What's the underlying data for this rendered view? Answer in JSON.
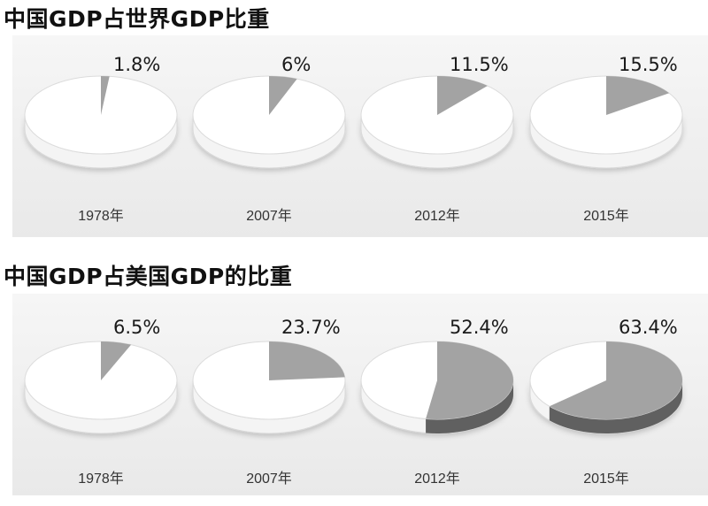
{
  "chart_data": [
    {
      "type": "pie",
      "title": "中国GDP占世界GDP比重",
      "categories": [
        "1978年",
        "2007年",
        "2012年",
        "2015年"
      ],
      "values": [
        1.8,
        6,
        11.5,
        15.5
      ],
      "value_labels": [
        "1.8%",
        "6%",
        "11.5%",
        "15.5%"
      ],
      "colors": {
        "share": "#a3a3a3",
        "share_side": "#606060",
        "rest": "#ffffff"
      }
    },
    {
      "type": "pie",
      "title": "中国GDP占美国GDP的比重",
      "categories": [
        "1978年",
        "2007年",
        "2012年",
        "2015年"
      ],
      "values": [
        6.5,
        23.7,
        52.4,
        63.4
      ],
      "value_labels": [
        "6.5%",
        "23.7%",
        "52.4%",
        "63.4%"
      ],
      "colors": {
        "share": "#a3a3a3",
        "share_side": "#606060",
        "rest": "#ffffff"
      }
    }
  ]
}
